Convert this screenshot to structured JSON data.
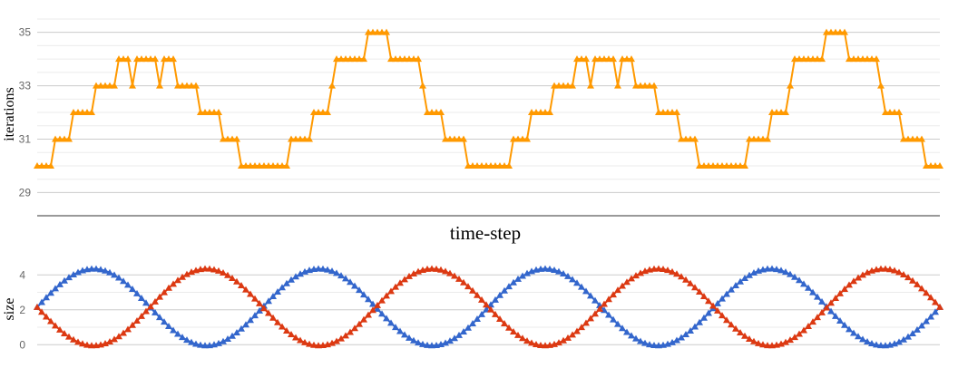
{
  "chart_data": [
    {
      "type": "line",
      "title": "",
      "ylabel": "iterations",
      "xlabel": "time-step",
      "ylim": [
        28.2,
        35.6
      ],
      "yticks": [
        29,
        31,
        33,
        35
      ],
      "grid": true,
      "marker": "triangle",
      "series": [
        {
          "color": "#ff9900",
          "values": [
            30,
            30,
            30,
            30,
            31,
            31,
            31,
            31,
            32,
            32,
            32,
            32,
            32,
            33,
            33,
            33,
            33,
            33,
            34,
            34,
            34,
            33,
            34,
            34,
            34,
            34,
            34,
            33,
            34,
            34,
            34,
            33,
            33,
            33,
            33,
            33,
            32,
            32,
            32,
            32,
            32,
            31,
            31,
            31,
            31,
            30,
            30,
            30,
            30,
            30,
            30,
            30,
            30,
            30,
            30,
            30,
            31,
            31,
            31,
            31,
            31,
            32,
            32,
            32,
            32,
            33,
            34,
            34,
            34,
            34,
            34,
            34,
            34,
            35,
            35,
            35,
            35,
            35,
            34,
            34,
            34,
            34,
            34,
            34,
            34,
            33,
            32,
            32,
            32,
            32,
            31,
            31,
            31,
            31,
            31,
            30,
            30,
            30,
            30,
            30,
            30,
            30,
            30,
            30,
            30,
            31,
            31,
            31,
            31,
            32,
            32,
            32,
            32,
            32,
            33,
            33,
            33,
            33,
            33,
            34,
            34,
            34,
            33,
            34,
            34,
            34,
            34,
            34,
            33,
            34,
            34,
            34,
            33,
            33,
            33,
            33,
            33,
            32,
            32,
            32,
            32,
            32,
            31,
            31,
            31,
            31,
            30,
            30,
            30,
            30,
            30,
            30,
            30,
            30,
            30,
            30,
            30,
            31,
            31,
            31,
            31,
            31,
            32,
            32,
            32,
            32,
            33,
            34,
            34,
            34,
            34,
            34,
            34,
            34,
            35,
            35,
            35,
            35,
            35,
            34,
            34,
            34,
            34,
            34,
            34,
            34,
            33,
            32,
            32,
            32,
            32,
            31,
            31,
            31,
            31,
            31,
            30,
            30,
            30,
            30
          ]
        }
      ]
    },
    {
      "type": "line",
      "title": "",
      "ylabel": "size",
      "xlabel": "",
      "ylim": [
        -0.4,
        5.0
      ],
      "yticks": [
        0,
        2,
        4
      ],
      "grid": true,
      "marker": "triangle",
      "points": 200,
      "periods": 4,
      "series": [
        {
          "color": "#3366cc",
          "baseline": 2.15,
          "amplitude": 2.2,
          "phase": "rising"
        },
        {
          "color": "#dc3912",
          "baseline": 2.15,
          "amplitude": 2.2,
          "phase": "falling"
        }
      ]
    }
  ]
}
